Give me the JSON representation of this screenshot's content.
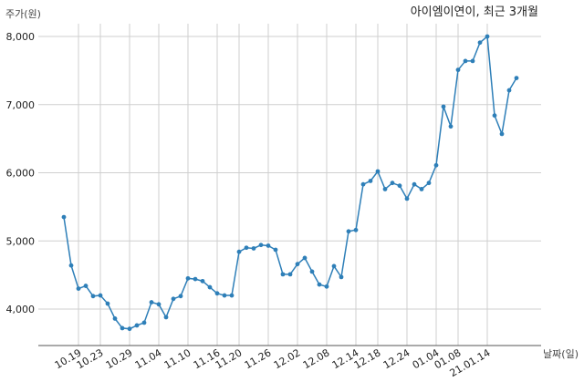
{
  "chart_data": {
    "type": "line",
    "title": "아이엠이연이, 최근 3개월",
    "ylabel": "주가(원)",
    "xlabel": "날짜(일)",
    "ylim": [
      3500,
      8150
    ],
    "yticks": [
      4000,
      5000,
      6000,
      7000,
      8000
    ],
    "ytick_labels": [
      "4,000",
      "5,000",
      "6,000",
      "7,000",
      "8,000"
    ],
    "xtick_labels": [
      "10.19",
      "10.23",
      "10.29",
      "11.04",
      "11.10",
      "11.16",
      "11.20",
      "11.26",
      "12.02",
      "12.08",
      "12.14",
      "12.18",
      "12.24",
      "01.04",
      "01.08",
      "21.01.14"
    ],
    "xtick_index": [
      2,
      5,
      9,
      13,
      17,
      21,
      24,
      28,
      32,
      36,
      40,
      43,
      47,
      51,
      54,
      58
    ],
    "grid": true,
    "line_color": "#2e7fb8",
    "series": [
      {
        "values": [
          5350,
          4640,
          4300,
          4340,
          4190,
          4200,
          4080,
          3860,
          3720,
          3710,
          3760,
          3800,
          4100,
          4070,
          3880,
          4150,
          4190,
          4450,
          4440,
          4410,
          4320,
          4230,
          4200,
          4200,
          4840,
          4900,
          4890,
          4940,
          4930,
          4870,
          4510,
          4510,
          4660,
          4750,
          4550,
          4360,
          4330,
          4630,
          4470,
          5140,
          5160,
          5830,
          5880,
          6020,
          5760,
          5850,
          5810,
          5620,
          5830,
          5760,
          5850,
          6110,
          6970,
          6680,
          7510,
          7640,
          7640,
          7910,
          8000,
          6840,
          6570,
          7210,
          7390
        ]
      }
    ]
  }
}
